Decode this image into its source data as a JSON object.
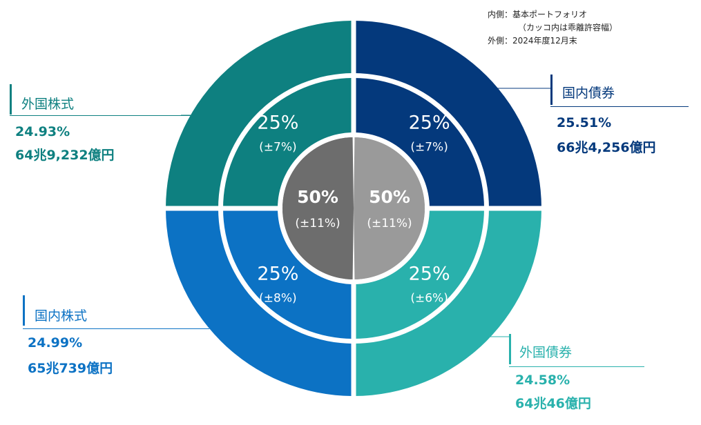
{
  "notes": {
    "inner": "内側：基本ポートフォリオ",
    "inner_sub": "（カッコ内は乖離許容幅）",
    "outer": "外側：2024年度12月末"
  },
  "chart_data": {
    "type": "pie",
    "subtype": "nested-donut",
    "center": [
      {
        "label": "50%",
        "sub": "(±11%)",
        "value": 50,
        "color": "#6d6d6d"
      },
      {
        "label": "50%",
        "sub": "(±11%)",
        "value": 50,
        "color": "#9a9a9a"
      }
    ],
    "inner_ring_label": "基本ポートフォリオ",
    "outer_ring_label": "2024年度12月末",
    "categories": [
      "国内債券",
      "外国債券",
      "国内株式",
      "外国株式"
    ],
    "colors": [
      "#04397c",
      "#29b1ac",
      "#0c72c4",
      "#0e8080"
    ],
    "series": [
      {
        "name": "基本ポートフォリオ",
        "values": [
          25,
          25,
          25,
          25
        ],
        "labels": [
          "25%",
          "25%",
          "25%",
          "25%"
        ],
        "tolerance": [
          "(±7%)",
          "(±6%)",
          "(±8%)",
          "(±7%)"
        ]
      },
      {
        "name": "2024年度12月末",
        "values": [
          25.51,
          24.58,
          24.99,
          24.93
        ],
        "labels": [
          "25.51%",
          "24.58%",
          "24.99%",
          "24.93%"
        ],
        "amounts": [
          "66兆4,256億円",
          "64兆46億円",
          "65兆739億円",
          "64兆9,232億円"
        ]
      }
    ]
  }
}
